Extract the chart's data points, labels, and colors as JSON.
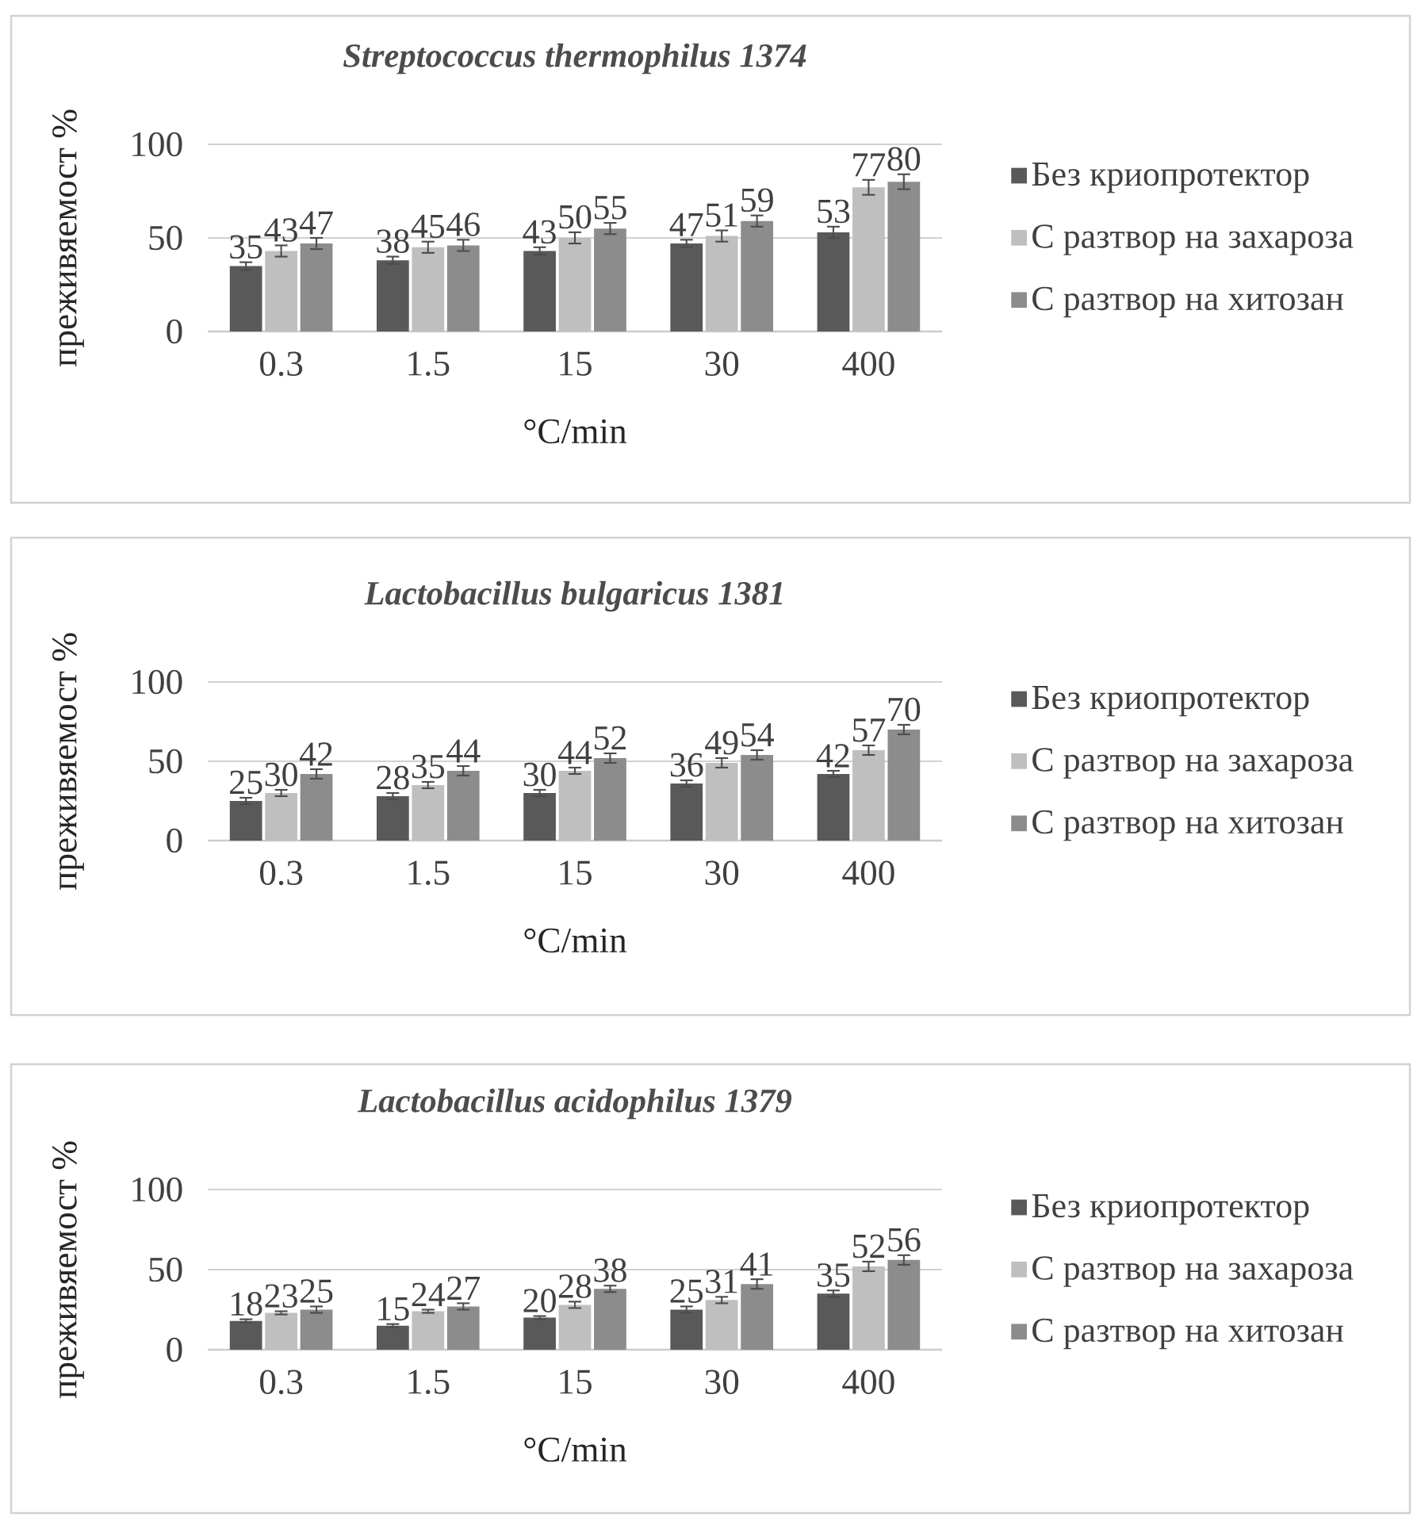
{
  "chart_data": [
    {
      "type": "bar",
      "title": "Streptococcus thermophilus 1374",
      "xlabel": "°C/min",
      "ylabel": "преживяемост %",
      "categories": [
        "0.3",
        "1.5",
        "15",
        "30",
        "400"
      ],
      "ylim": [
        0,
        100
      ],
      "yticks": [
        0,
        50,
        100
      ],
      "grid": "y",
      "legend": "right",
      "data_labels": true,
      "series": [
        {
          "name": "Без криопротектор",
          "color": "#595959",
          "values": [
            35,
            38,
            43,
            47,
            53
          ],
          "errors": [
            2,
            2,
            2,
            2,
            3
          ]
        },
        {
          "name": "С разтвор на захароза",
          "color": "#bfbfbf",
          "values": [
            43,
            45,
            50,
            51,
            77
          ],
          "errors": [
            3,
            3,
            3,
            3,
            4
          ]
        },
        {
          "name": "С разтвор на хитозан",
          "color": "#8c8c8c",
          "values": [
            47,
            46,
            55,
            59,
            80
          ],
          "errors": [
            3,
            3,
            3,
            3,
            4
          ]
        }
      ]
    },
    {
      "type": "bar",
      "title": "Lactobacillus bulgaricus 1381",
      "xlabel": "°C/min",
      "ylabel": "преживяемост %",
      "categories": [
        "0.3",
        "1.5",
        "15",
        "30",
        "400"
      ],
      "ylim": [
        0,
        100
      ],
      "yticks": [
        0,
        50,
        100
      ],
      "grid": "y",
      "legend": "right",
      "data_labels": true,
      "series": [
        {
          "name": "Без криопротектор",
          "color": "#595959",
          "values": [
            25,
            28,
            30,
            36,
            42
          ],
          "errors": [
            2,
            2,
            2,
            2,
            2
          ]
        },
        {
          "name": "С разтвор на захароза",
          "color": "#bfbfbf",
          "values": [
            30,
            35,
            44,
            49,
            57
          ],
          "errors": [
            2,
            2,
            2,
            3,
            3
          ]
        },
        {
          "name": "С разтвор на хитозан",
          "color": "#8c8c8c",
          "values": [
            42,
            44,
            52,
            54,
            70
          ],
          "errors": [
            3,
            3,
            3,
            3,
            3
          ]
        }
      ]
    },
    {
      "type": "bar",
      "title": "Lactobacillus acidophilus 1379",
      "xlabel": "°C/min",
      "ylabel": "преживяемост %",
      "categories": [
        "0.3",
        "1.5",
        "15",
        "30",
        "400"
      ],
      "ylim": [
        0,
        100
      ],
      "yticks": [
        0,
        50,
        100
      ],
      "grid": "y",
      "legend": "right",
      "data_labels": true,
      "series": [
        {
          "name": "Без криопротектор",
          "color": "#595959",
          "values": [
            18,
            15,
            20,
            25,
            35
          ],
          "errors": [
            1,
            1,
            1,
            2,
            2
          ]
        },
        {
          "name": "С разтвор на захароза",
          "color": "#bfbfbf",
          "values": [
            23,
            24,
            28,
            31,
            52
          ],
          "errors": [
            1,
            1,
            2,
            2,
            3
          ]
        },
        {
          "name": "С разтвор на хитозан",
          "color": "#8c8c8c",
          "values": [
            25,
            27,
            38,
            41,
            56
          ],
          "errors": [
            2,
            2,
            2,
            3,
            3
          ]
        }
      ]
    }
  ]
}
